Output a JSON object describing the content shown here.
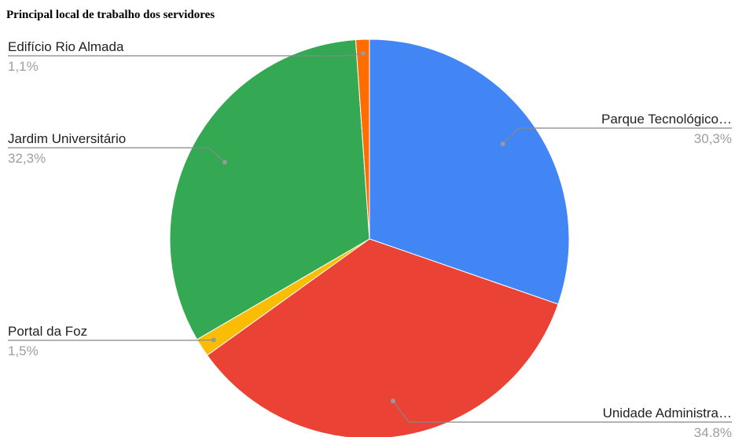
{
  "chart_data": {
    "type": "pie",
    "title": "Principal local de trabalho dos servidores",
    "slices": [
      {
        "label": "Parque Tecnológico…",
        "value": 30.3,
        "percent_label": "30,3%",
        "color": "#4285F4"
      },
      {
        "label": "Unidade Administra…",
        "value": 34.8,
        "percent_label": "34,8%",
        "color": "#EA4335"
      },
      {
        "label": "Portal da Foz",
        "value": 1.5,
        "percent_label": "1,5%",
        "color": "#FBBC04"
      },
      {
        "label": "Jardim Universitário",
        "value": 32.3,
        "percent_label": "32,3%",
        "color": "#34A853"
      },
      {
        "label": "Edifício Rio Almada",
        "value": 1.1,
        "percent_label": "1,1%",
        "color": "#FF6D01"
      }
    ],
    "start": "top",
    "direction": "clockwise",
    "legend": "none (labels with leader lines)"
  }
}
